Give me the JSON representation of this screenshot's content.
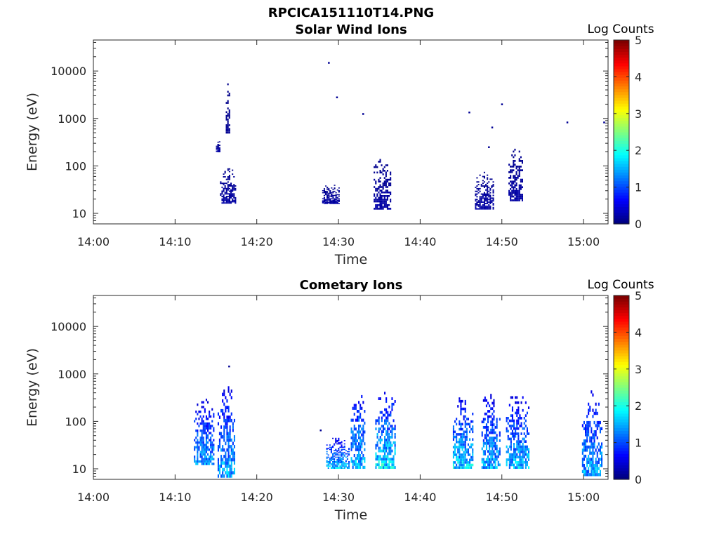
{
  "figure_title": "RPCICA151110T14.PNG",
  "colorbar_label": "Log Counts",
  "colorbar_ticks": [
    "0",
    "1",
    "2",
    "3",
    "4",
    "5"
  ],
  "chart_data": [
    {
      "type": "heatmap",
      "title": "Solar Wind Ions",
      "xlabel": "Time",
      "ylabel": "Energy (eV)",
      "x_ticks": [
        "14:00",
        "14:10",
        "14:20",
        "14:30",
        "14:40",
        "14:50",
        "15:00"
      ],
      "y_ticks": [
        "10",
        "100",
        "1000",
        "10000"
      ],
      "yscale": "log",
      "ylim": [
        6,
        45000
      ],
      "xlim_minutes_after_1400": [
        0,
        63
      ],
      "clim": [
        0,
        5
      ],
      "colormap": "jet",
      "bursts": [
        {
          "t": [
            15.0,
            15.5
          ],
          "e": [
            200,
            330
          ],
          "c": 0.2
        },
        {
          "t": [
            15.5,
            17.3
          ],
          "e": [
            16,
            95
          ],
          "c": 0.2
        },
        {
          "t": [
            16.2,
            16.7
          ],
          "e": [
            480,
            6000
          ],
          "c": 0.1
        },
        {
          "t": [
            28.0,
            30.0
          ],
          "e": [
            16,
            40
          ],
          "c": 0.2
        },
        {
          "t": [
            34.3,
            36.3
          ],
          "e": [
            12,
            140
          ],
          "c": 0.2
        },
        {
          "t": [
            46.7,
            49.0
          ],
          "e": [
            12,
            75
          ],
          "c": 0.2
        },
        {
          "t": [
            50.8,
            52.5
          ],
          "e": [
            18,
            230
          ],
          "c": 0.2
        }
      ],
      "points": [
        {
          "t": 28.8,
          "e": 15000,
          "c": 0.1
        },
        {
          "t": 29.8,
          "e": 2800,
          "c": 0.1
        },
        {
          "t": 33.0,
          "e": 1250,
          "c": 0.1
        },
        {
          "t": 46.0,
          "e": 1350,
          "c": 0.1
        },
        {
          "t": 48.8,
          "e": 650,
          "c": 0.1
        },
        {
          "t": 48.4,
          "e": 250,
          "c": 0.1
        },
        {
          "t": 50.0,
          "e": 2000,
          "c": 0.1
        },
        {
          "t": 58.0,
          "e": 830,
          "c": 0.1
        },
        {
          "t": 62.5,
          "e": 830,
          "c": 0.1
        }
      ]
    },
    {
      "type": "heatmap",
      "title": "Cometary Ions",
      "xlabel": "Time",
      "ylabel": "Energy (eV)",
      "x_ticks": [
        "14:00",
        "14:10",
        "14:20",
        "14:30",
        "14:40",
        "14:50",
        "15:00"
      ],
      "y_ticks": [
        "10",
        "100",
        "1000",
        "10000"
      ],
      "yscale": "log",
      "ylim": [
        6,
        45000
      ],
      "xlim_minutes_after_1400": [
        0,
        63
      ],
      "clim": [
        0,
        5
      ],
      "colormap": "jet",
      "bursts": [
        {
          "t": [
            12.3,
            14.8
          ],
          "e": [
            12,
            300
          ],
          "c": 1.5
        },
        {
          "t": [
            15.2,
            17.3
          ],
          "e": [
            6.5,
            550
          ],
          "c": 1.6
        },
        {
          "t": [
            28.5,
            31.2
          ],
          "e": [
            10,
            45
          ],
          "c": 1.7
        },
        {
          "t": [
            31.5,
            33.3
          ],
          "e": [
            10,
            550
          ],
          "c": 1.7
        },
        {
          "t": [
            34.5,
            37.0
          ],
          "e": [
            10,
            420
          ],
          "c": 1.9
        },
        {
          "t": [
            44.0,
            46.5
          ],
          "e": [
            10,
            320
          ],
          "c": 1.8
        },
        {
          "t": [
            47.5,
            49.8
          ],
          "e": [
            10,
            380
          ],
          "c": 1.6
        },
        {
          "t": [
            50.5,
            53.2
          ],
          "e": [
            10,
            340
          ],
          "c": 1.7
        },
        {
          "t": [
            59.8,
            62.3
          ],
          "e": [
            7,
            450
          ],
          "c": 1.6
        }
      ],
      "points": [
        {
          "t": 16.6,
          "e": 1450,
          "c": 0.1
        },
        {
          "t": 27.8,
          "e": 65,
          "c": 0.1
        }
      ]
    }
  ]
}
